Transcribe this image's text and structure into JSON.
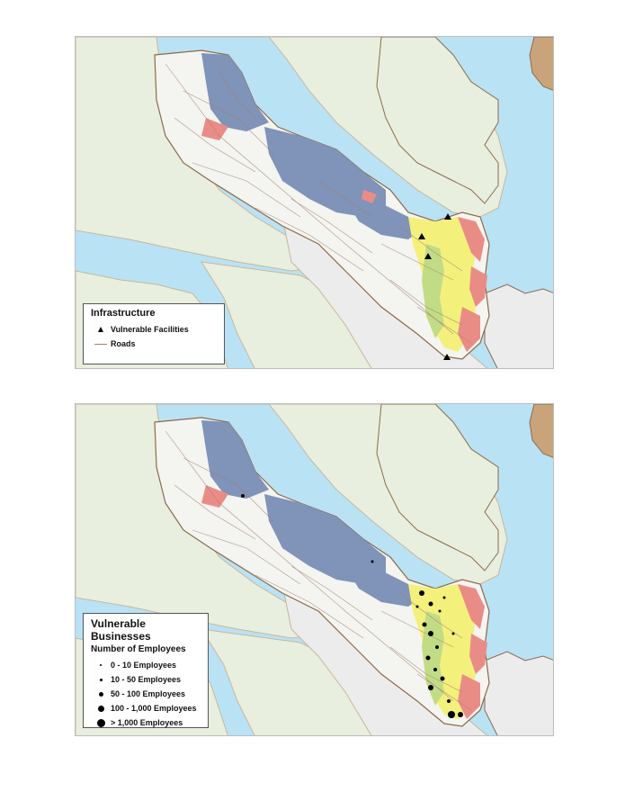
{
  "maps": [
    {
      "legend": {
        "title": "Infrastructure",
        "items": [
          {
            "label": "Vulnerable Facilities",
            "symbol": "triangle"
          },
          {
            "label": "Roads",
            "symbol": "line"
          }
        ]
      }
    },
    {
      "legend": {
        "title": "Vulnerable Businesses",
        "subtitle": "Number of Employees",
        "items": [
          {
            "label": "0 - 10 Employees"
          },
          {
            "label": "10 - 50 Employees"
          },
          {
            "label": "50 - 100 Employees"
          },
          {
            "label": "100 - 1,000 Employees"
          },
          {
            "label": "> 1,000 Employees"
          }
        ]
      }
    }
  ],
  "colors": {
    "water": "#b9e2f5",
    "land": "#e8efdf",
    "land_gray": "#ececec",
    "vulnerable_low": "#8093b8",
    "vulnerable_mid": "#f4f07c",
    "vulnerable_midhigh": "#c2dc86",
    "vulnerable_high": "#ea8c86",
    "roads": "#a0826d",
    "coastline": "#8b6b4a"
  }
}
